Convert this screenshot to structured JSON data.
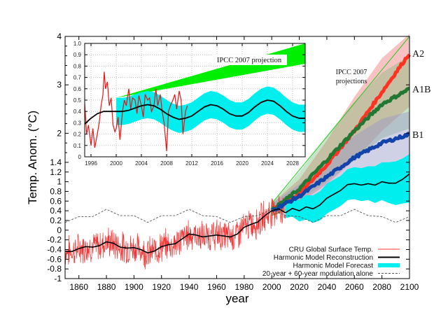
{
  "chart_data": {
    "type": "line",
    "title": "",
    "xlabel": "year",
    "ylabel": "Temp. Anom. (°C)",
    "xlim": [
      1850,
      2100
    ],
    "ylim": [
      -1,
      4
    ],
    "x_ticks": [
      1860,
      1880,
      1900,
      1920,
      1940,
      1960,
      1980,
      2000,
      2020,
      2040,
      2060,
      2080,
      2100
    ],
    "y_ticks": [
      -1,
      -0.8,
      -0.6,
      -0.4,
      -0.2,
      0,
      0.2,
      0.4,
      0.6,
      0.8,
      1,
      1.2,
      1.4,
      2,
      3,
      4
    ],
    "y_tick_labels": [
      "-1",
      "-0.8",
      "-0.6",
      "-0.4",
      "-0.2",
      "0",
      "0.2",
      "0.4",
      "0.6",
      "0.8",
      "1",
      "1.2",
      "1.4",
      "2",
      "3",
      "4"
    ],
    "grid": false,
    "legend_position": "bottom-right",
    "legend": [
      {
        "label": "CRU Global Surface Temp.",
        "color": "#ff9999",
        "style": "line"
      },
      {
        "label": "Harmonic Model Reconstruction",
        "color": "#000000",
        "style": "line"
      },
      {
        "label": "Harmonic Model Forecast",
        "color": "#00eeee",
        "style": "band"
      },
      {
        "label": "20-year + 60-year modulation alone",
        "color": "#555555",
        "style": "dashed"
      }
    ],
    "series": [
      {
        "name": "Harmonic Model Reconstruction",
        "color": "#000000",
        "x": [
          1850,
          1855,
          1860,
          1865,
          1870,
          1875,
          1880,
          1885,
          1890,
          1895,
          1900,
          1905,
          1910,
          1915,
          1920,
          1925,
          1930,
          1935,
          1940,
          1945,
          1950,
          1955,
          1960,
          1965,
          1970,
          1975,
          1980,
          1985,
          1990,
          1995,
          2000,
          2005,
          2010
        ],
        "y": [
          -0.44,
          -0.44,
          -0.38,
          -0.34,
          -0.35,
          -0.32,
          -0.24,
          -0.27,
          -0.35,
          -0.37,
          -0.36,
          -0.4,
          -0.47,
          -0.43,
          -0.34,
          -0.3,
          -0.28,
          -0.18,
          -0.08,
          -0.1,
          -0.14,
          -0.12,
          -0.1,
          -0.12,
          -0.14,
          -0.08,
          0.06,
          0.12,
          0.17,
          0.3,
          0.4,
          0.44,
          0.36
        ]
      },
      {
        "name": "Harmonic Model Forecast",
        "color": "#000000",
        "x": [
          2010,
          2015,
          2020,
          2025,
          2030,
          2035,
          2040,
          2045,
          2050,
          2055,
          2060,
          2065,
          2070,
          2075,
          2080,
          2085,
          2090,
          2095,
          2100
        ],
        "y": [
          0.36,
          0.45,
          0.4,
          0.48,
          0.44,
          0.52,
          0.66,
          0.74,
          0.82,
          0.94,
          0.96,
          0.93,
          0.96,
          0.93,
          1.0,
          0.97,
          0.97,
          1.05,
          1.16
        ],
        "band_upper": [
          0.5,
          0.62,
          0.62,
          0.72,
          0.72,
          0.8,
          0.96,
          1.04,
          1.12,
          1.26,
          1.3,
          1.28,
          1.32,
          1.32,
          1.4,
          1.4,
          1.42,
          1.48,
          1.57
        ],
        "band_lower": [
          0.25,
          0.28,
          0.18,
          0.22,
          0.15,
          0.2,
          0.34,
          0.42,
          0.5,
          0.62,
          0.64,
          0.6,
          0.62,
          0.56,
          0.62,
          0.56,
          0.52,
          0.55,
          0.57
        ]
      },
      {
        "name": "20-year + 60-year modulation alone",
        "color": "#555555",
        "style": "dashed",
        "x": [
          1850,
          1860,
          1870,
          1880,
          1890,
          1900,
          1910,
          1920,
          1930,
          1940,
          1950,
          1960,
          1970,
          1980,
          1990,
          2000,
          2010,
          2020,
          2030,
          2040,
          2050,
          2060,
          2070,
          2080,
          2090,
          2100
        ],
        "y": [
          0.16,
          0.28,
          0.28,
          0.43,
          0.3,
          0.3,
          0.16,
          0.3,
          0.3,
          0.43,
          0.3,
          0.28,
          0.16,
          0.28,
          0.3,
          0.43,
          0.3,
          0.28,
          0.16,
          0.3,
          0.3,
          0.43,
          0.3,
          0.28,
          0.16,
          0.28
        ]
      },
      {
        "name": "IPCC A2",
        "color": "#ff3322",
        "x": [
          2000,
          2020,
          2040,
          2060,
          2080,
          2100
        ],
        "y": [
          0.4,
          0.75,
          1.35,
          2.05,
          2.85,
          3.65
        ],
        "band_upper": [
          0.55,
          1.05,
          1.85,
          2.75,
          3.55,
          4.05
        ],
        "band_lower": [
          0.3,
          0.55,
          0.95,
          1.45,
          2.05,
          2.55
        ]
      },
      {
        "name": "IPCC A1B",
        "color": "#227733",
        "x": [
          2000,
          2020,
          2040,
          2060,
          2080,
          2100
        ],
        "y": [
          0.4,
          0.85,
          1.45,
          2.05,
          2.6,
          2.92
        ],
        "band_upper": [
          0.55,
          1.2,
          1.95,
          2.65,
          3.25,
          3.6
        ],
        "band_lower": [
          0.3,
          0.6,
          1.0,
          1.45,
          1.9,
          2.1
        ]
      },
      {
        "name": "IPCC B1",
        "color": "#1144aa",
        "x": [
          2000,
          2020,
          2040,
          2060,
          2080,
          2100
        ],
        "y": [
          0.4,
          0.7,
          1.1,
          1.5,
          1.8,
          1.98
        ],
        "band_upper": [
          0.55,
          0.95,
          1.45,
          1.95,
          2.3,
          2.45
        ],
        "band_lower": [
          0.3,
          0.45,
          0.7,
          1.0,
          1.3,
          1.45
        ]
      }
    ],
    "annotations": [
      {
        "text": "IPCC 2007",
        "text2": "projections"
      },
      {
        "text": "A2"
      },
      {
        "text": "A1B"
      },
      {
        "text": "B1"
      }
    ],
    "inset": {
      "xlim": [
        1995,
        2030
      ],
      "ylim": [
        0,
        1.0
      ],
      "x_ticks": [
        1996,
        2000,
        2004,
        2008,
        2012,
        2016,
        2020,
        2024,
        2028
      ],
      "y_ticks": [
        0,
        0.1,
        0.2,
        0.3,
        0.4,
        0.5,
        0.6,
        0.7,
        0.8,
        0.9,
        1.0
      ],
      "y_tick_labels": [
        "0",
        "0.1",
        "0.2",
        "0.3",
        "0.4",
        "0.5",
        "0.6",
        "0.7",
        "0.8",
        "0.9",
        "1.0"
      ],
      "grid": true,
      "annotation": "IPCC 2007 projection",
      "ipcc_band": {
        "x": [
          2000,
          2030
        ],
        "upper": [
          0.52,
          1.05
        ],
        "lower": [
          0.52,
          0.82
        ],
        "color": "#00ee00"
      },
      "model": {
        "x": [
          1995,
          1996,
          1997,
          1998,
          1999,
          2000,
          2001,
          2002,
          2003,
          2004,
          2005,
          2006,
          2007,
          2008,
          2009,
          2010,
          2011,
          2012,
          2013,
          2014,
          2015,
          2016,
          2017,
          2018,
          2019,
          2020,
          2021,
          2022,
          2023,
          2024,
          2025,
          2026,
          2027,
          2028,
          2029,
          2030
        ],
        "y": [
          0.29,
          0.34,
          0.38,
          0.4,
          0.4,
          0.4,
          0.4,
          0.41,
          0.43,
          0.45,
          0.46,
          0.45,
          0.42,
          0.38,
          0.35,
          0.33,
          0.34,
          0.36,
          0.4,
          0.44,
          0.46,
          0.45,
          0.42,
          0.38,
          0.36,
          0.36,
          0.39,
          0.44,
          0.48,
          0.5,
          0.49,
          0.45,
          0.4,
          0.36,
          0.34,
          0.34
        ],
        "band_half_width": 0.12,
        "band_start": 2000
      },
      "observed": {
        "x": [
          1995.0,
          1995.3,
          1995.6,
          1996.0,
          1996.3,
          1996.6,
          1997.0,
          1997.3,
          1997.6,
          1997.9,
          1998.1,
          1998.3,
          1998.6,
          1998.9,
          1999.2,
          1999.5,
          1999.8,
          2000.0,
          2000.3,
          2000.6,
          2001.0,
          2001.3,
          2001.6,
          2002.0,
          2002.3,
          2002.6,
          2003.0,
          2003.3,
          2003.6,
          2004.0,
          2004.3,
          2004.6,
          2005.0,
          2005.3,
          2005.6,
          2006.0,
          2006.3,
          2006.6,
          2007.0,
          2007.3,
          2007.6,
          2008.0,
          2008.3,
          2008.6,
          2009.0,
          2009.3,
          2009.6,
          2010.0,
          2010.3,
          2010.6,
          2011.0,
          2011.3
        ],
        "y": [
          0.47,
          0.2,
          0.28,
          0.1,
          0.25,
          0.08,
          0.2,
          0.3,
          0.45,
          0.55,
          0.75,
          0.6,
          0.66,
          0.45,
          0.52,
          0.28,
          0.22,
          0.25,
          0.35,
          0.15,
          0.4,
          0.5,
          0.45,
          0.6,
          0.42,
          0.52,
          0.5,
          0.38,
          0.54,
          0.45,
          0.35,
          0.55,
          0.5,
          0.52,
          0.4,
          0.45,
          0.6,
          0.45,
          0.55,
          0.4,
          0.3,
          0.05,
          0.4,
          0.45,
          0.5,
          0.55,
          0.42,
          0.58,
          0.5,
          0.2,
          0.4,
          0.45
        ],
        "color": "#ee1111"
      }
    }
  }
}
